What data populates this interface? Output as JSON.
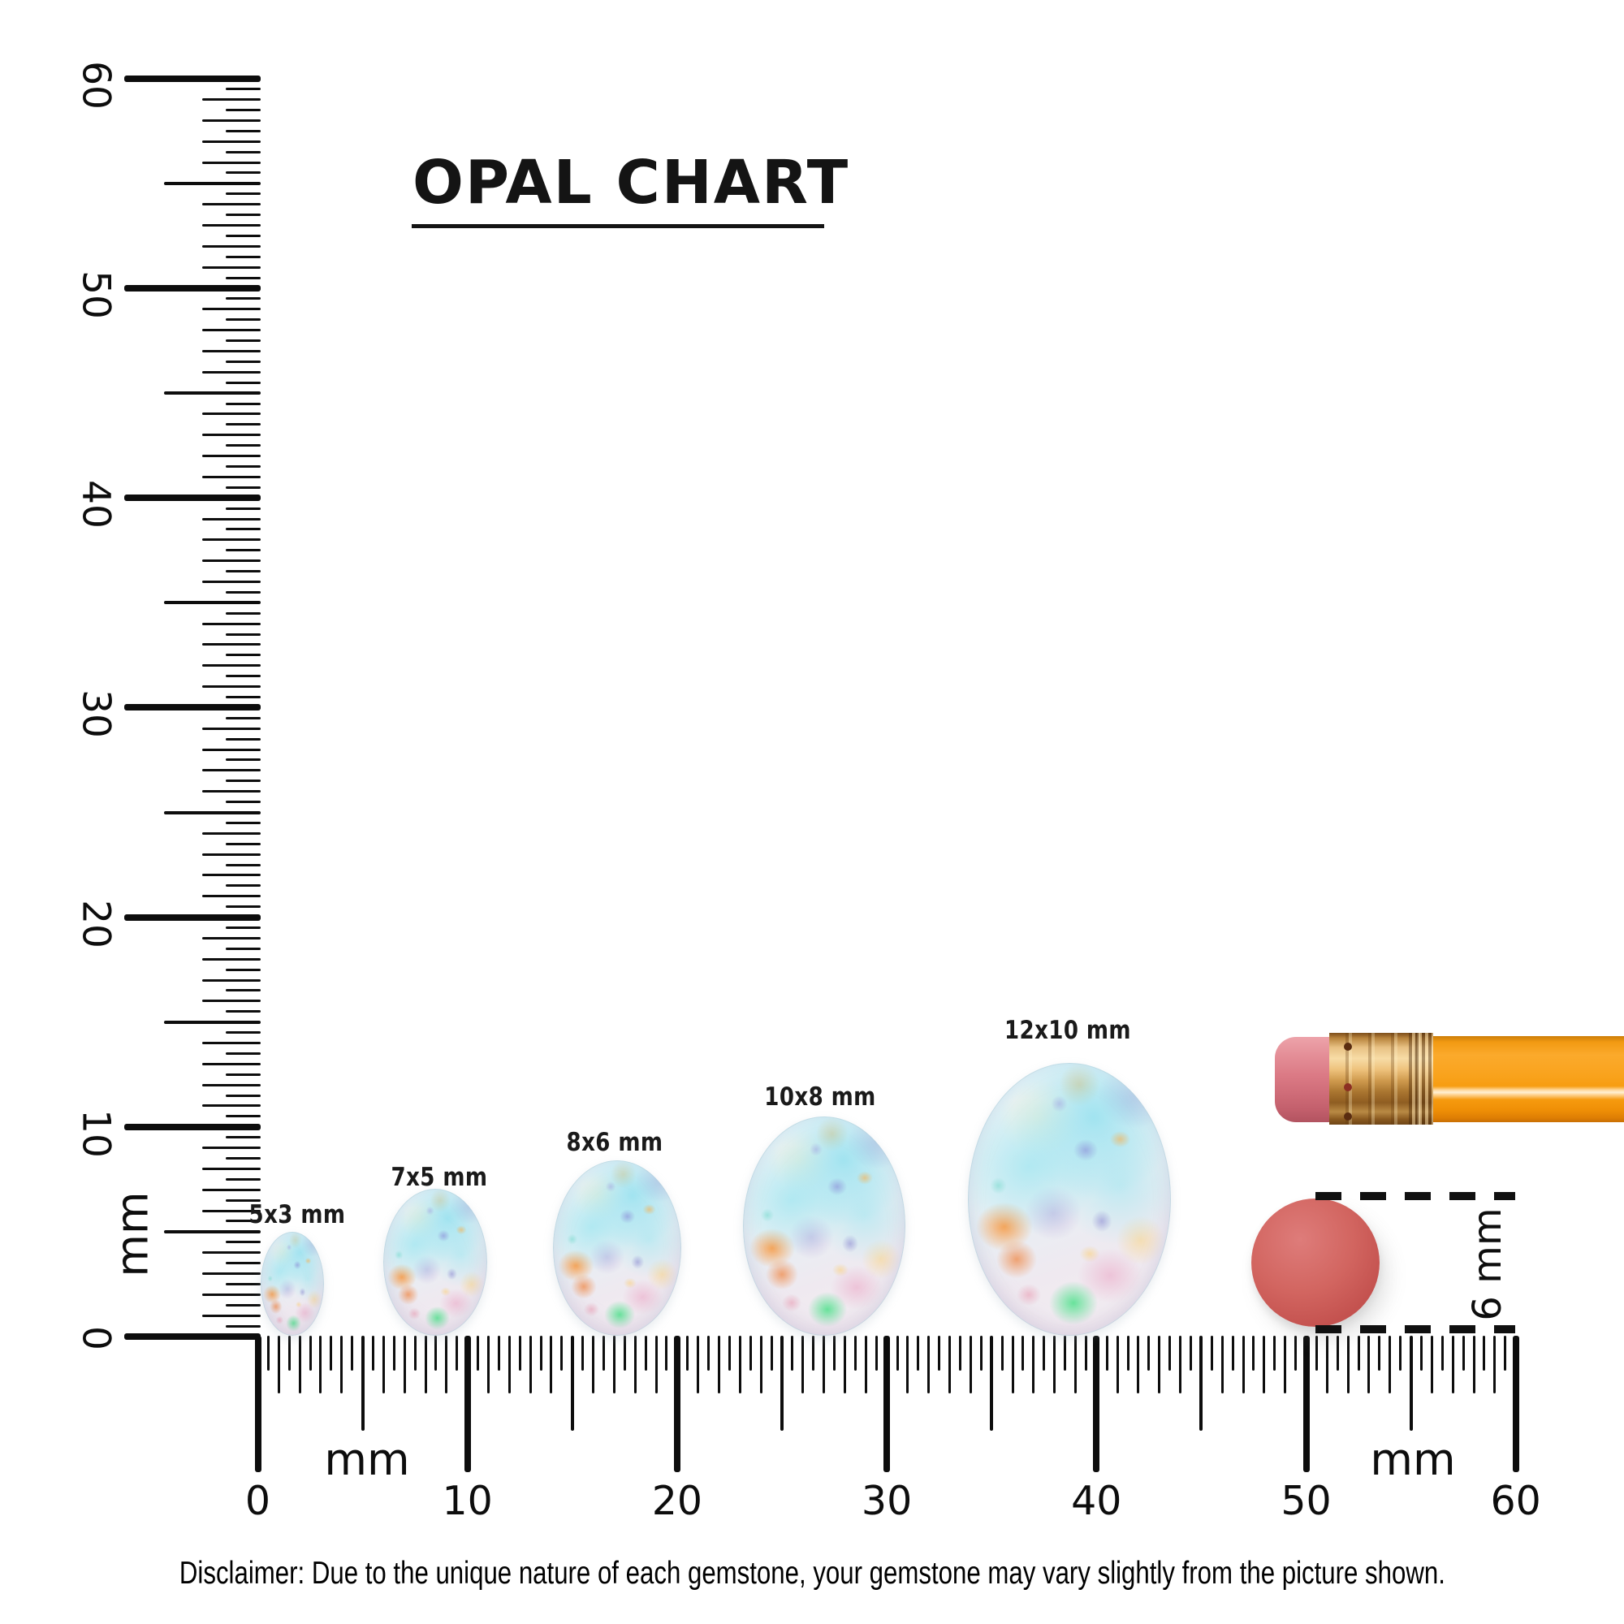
{
  "title": {
    "text": "OPAL CHART"
  },
  "rulers": {
    "vertical": {
      "unit": "mm",
      "min_mm": 0,
      "max_mm": 60,
      "labels": [
        0,
        10,
        20,
        30,
        40,
        50,
        60
      ]
    },
    "horizontal": {
      "unit_labels": [
        "mm",
        "mm"
      ],
      "min_mm": 0,
      "max_mm": 60,
      "labels": [
        0,
        10,
        20,
        30,
        40,
        50,
        60
      ]
    }
  },
  "opals": [
    {
      "label": "5x3 mm"
    },
    {
      "label": "7x5 mm"
    },
    {
      "label": "8x6 mm"
    },
    {
      "label": "10x8 mm"
    },
    {
      "label": "12x10 mm"
    }
  ],
  "comparison": {
    "disc_label": "6 mm"
  },
  "disclaimer": "Disclaimer: Due to the unique nature of each gemstone, your gemstone may vary slightly from the picture shown.",
  "colors": {
    "ink": "#0d0d0d",
    "pencil_orange": "#f9a11c",
    "eraser_pink": "#db7a85",
    "ferrule_gold": "#d9a85c",
    "disc_red": "#cd5a5c",
    "opal_base": "#e8f2f5",
    "opal_cyan": "#96e0ef",
    "opal_orange": "#f89632",
    "opal_green": "#50e18c",
    "opal_lavender": "#a996d7"
  },
  "chart_data": {
    "type": "size-chart",
    "title": "OPAL CHART",
    "unit": "mm",
    "ruler_range_mm": [
      0,
      60
    ],
    "ruler_tick_step_mm": 0.5,
    "items": [
      {
        "label": "5x3 mm",
        "length_mm": 5,
        "width_mm": 3
      },
      {
        "label": "7x5 mm",
        "length_mm": 7,
        "width_mm": 5
      },
      {
        "label": "8x6 mm",
        "length_mm": 8,
        "width_mm": 6
      },
      {
        "label": "10x8 mm",
        "length_mm": 10,
        "width_mm": 8
      },
      {
        "label": "12x10 mm",
        "length_mm": 12,
        "width_mm": 10
      }
    ],
    "reference_objects": [
      {
        "name": "pencil with eraser",
        "position": "right edge"
      },
      {
        "name": "round eraser disc",
        "diameter_mm": 6,
        "label": "6 mm"
      }
    ]
  }
}
